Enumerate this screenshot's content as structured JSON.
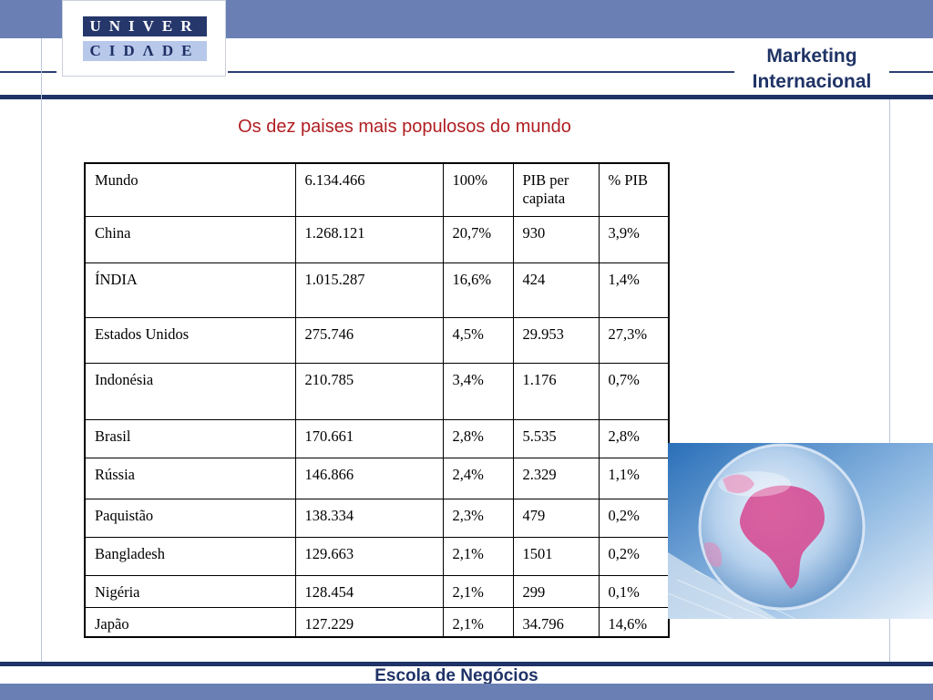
{
  "logo": {
    "line1": "UNIVER",
    "line2": "CIDΛDE"
  },
  "header": {
    "title_line1": "Marketing",
    "title_line2": "Internacional"
  },
  "slide": {
    "title": "Os dez paises mais populosos do mundo"
  },
  "table": {
    "rows": [
      [
        "Mundo",
        "6.134.466",
        "100%",
        "PIB per capiata",
        "% PIB"
      ],
      [
        "China",
        "1.268.121",
        "20,7%",
        "930",
        "3,9%"
      ],
      [
        "ÍNDIA",
        "1.015.287",
        "16,6%",
        "424",
        "1,4%"
      ],
      [
        "Estados Unidos",
        "275.746",
        "4,5%",
        "29.953",
        "27,3%"
      ],
      [
        "Indonésia",
        "210.785",
        "3,4%",
        "1.176",
        "0,7%"
      ],
      [
        "Brasil",
        "170.661",
        "2,8%",
        "5.535",
        "2,8%"
      ],
      [
        "Rússia",
        "146.866",
        "2,4%",
        "2.329",
        "1,1%"
      ],
      [
        "Paquistão",
        "138.334",
        "2,3%",
        "479",
        "0,2%"
      ],
      [
        "Bangladesh",
        "129.663",
        "2,1%",
        "1501",
        "0,2%"
      ],
      [
        "Nigéria",
        "128.454",
        "2,1%",
        "299",
        "0,1%"
      ],
      [
        "Japão",
        "127.229",
        "2,1%",
        "34.796",
        "14,6%"
      ]
    ]
  },
  "image": {
    "subject": "globe-image"
  },
  "footer": {
    "text": "Escola de Negócios"
  },
  "colors": {
    "frame": "#1f3366",
    "bar": "#6a7fb3",
    "title": "#b01e22"
  }
}
